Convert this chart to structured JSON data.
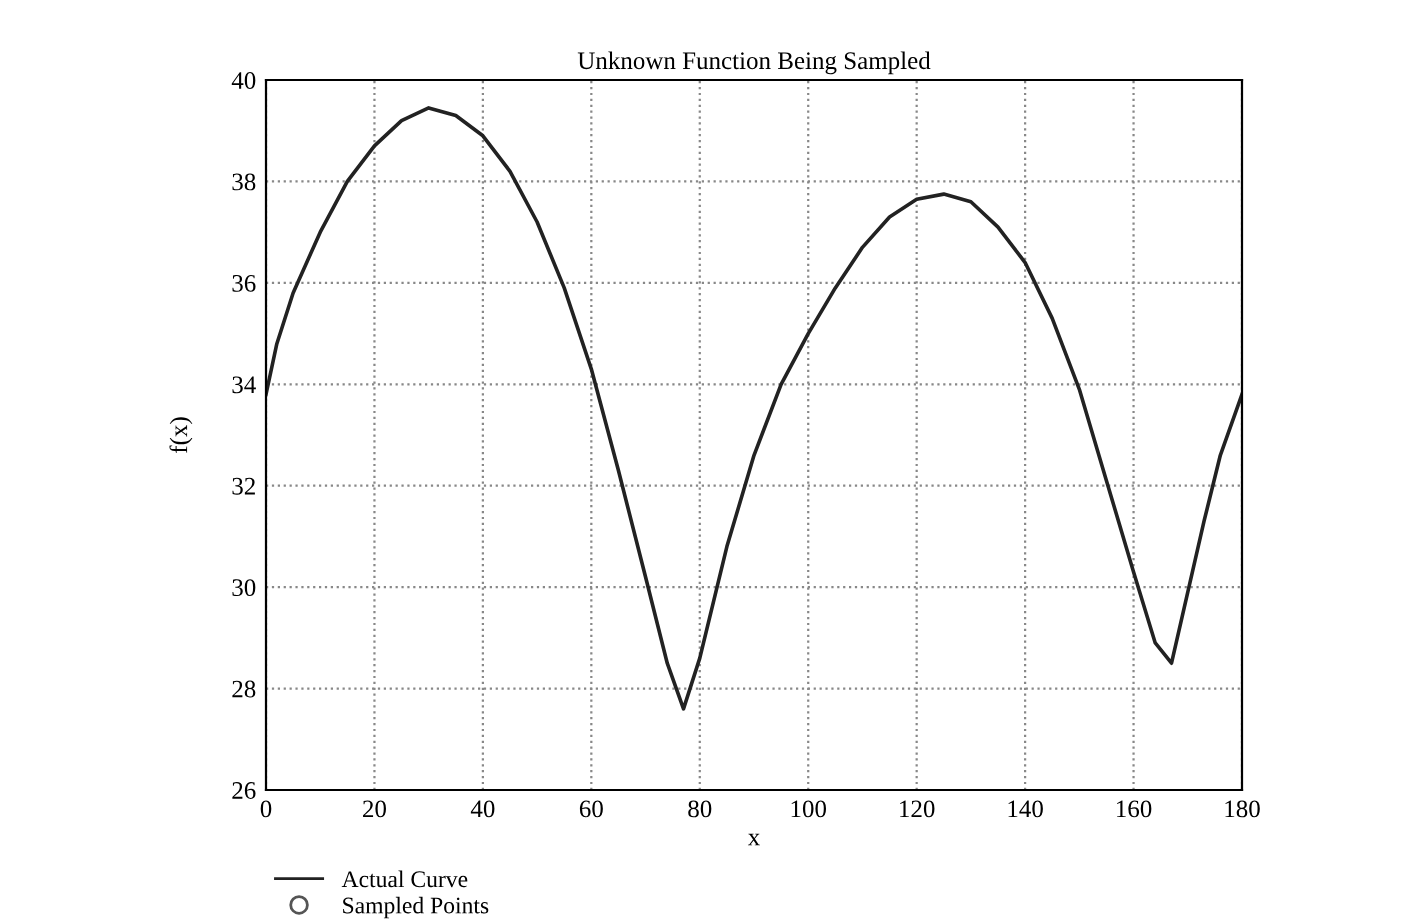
{
  "chart_data": {
    "type": "line",
    "title": "Unknown Function Being Sampled",
    "xlabel": "x",
    "ylabel": "f(x)",
    "xlim": [
      0,
      180
    ],
    "xticks": [
      0,
      20,
      40,
      60,
      80,
      100,
      120,
      140,
      160,
      180
    ],
    "ylim": [
      26,
      40
    ],
    "yticks": [
      26,
      28,
      30,
      32,
      34,
      36,
      38,
      40
    ],
    "grid": true,
    "legend": "bottom left",
    "series": [
      {
        "name": "Actual Curve",
        "color": "#222222",
        "marker": "none",
        "line_style": "solid",
        "x": [
          0,
          2,
          5,
          10,
          15,
          20,
          25,
          30,
          35,
          40,
          45,
          50,
          55,
          60,
          65,
          70,
          74,
          77,
          80,
          85,
          90,
          95,
          100,
          105,
          110,
          115,
          120,
          125,
          130,
          135,
          140,
          145,
          150,
          155,
          160,
          164,
          167,
          170,
          173,
          176,
          180
        ],
        "values": [
          33.8,
          34.8,
          35.8,
          37,
          38,
          38.7,
          39.2,
          39.45,
          39.3,
          38.9,
          38.2,
          37.2,
          35.9,
          34.3,
          32.3,
          30.2,
          28.5,
          27.6,
          28.6,
          30.8,
          32.6,
          34.0,
          35.0,
          35.9,
          36.7,
          37.3,
          37.65,
          37.75,
          37.6,
          37.1,
          36.4,
          35.3,
          33.9,
          32.1,
          30.3,
          28.9,
          28.5,
          29.9,
          31.3,
          32.6,
          33.8
        ]
      },
      {
        "name": "Sampled Points",
        "type": "scatter",
        "color": "#555555",
        "marker": "circle"
      }
    ]
  }
}
